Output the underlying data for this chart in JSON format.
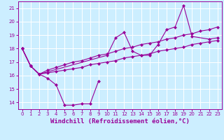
{
  "background_color": "#cceeff",
  "grid_color": "#ffffff",
  "line_color": "#990099",
  "marker_style": "D",
  "marker_size": 2.0,
  "line_width": 0.8,
  "xlim": [
    -0.5,
    23.5
  ],
  "ylim": [
    13.5,
    21.5
  ],
  "yticks": [
    14,
    15,
    16,
    17,
    18,
    19,
    20,
    21
  ],
  "xticks": [
    0,
    1,
    2,
    3,
    4,
    5,
    6,
    7,
    8,
    9,
    10,
    11,
    12,
    13,
    14,
    15,
    16,
    17,
    18,
    19,
    20,
    21,
    22,
    23
  ],
  "xlabel": "Windchill (Refroidissement éolien,°C)",
  "series": [
    {
      "x": [
        0,
        1,
        2,
        3,
        4,
        5,
        6,
        7,
        8,
        9
      ],
      "y": [
        18.0,
        16.7,
        16.1,
        15.8,
        15.3,
        13.8,
        13.8,
        13.9,
        13.9,
        15.6
      ]
    },
    {
      "x": [
        0,
        1,
        2,
        10,
        11,
        12,
        13,
        14,
        15,
        16,
        17,
        18,
        19,
        20,
        22,
        23
      ],
      "y": [
        18.0,
        16.7,
        16.1,
        17.5,
        18.8,
        19.2,
        17.8,
        17.5,
        17.5,
        18.3,
        19.4,
        19.6,
        21.2,
        18.9,
        18.7,
        18.8
      ]
    },
    {
      "x": [
        0,
        1,
        2,
        3,
        4,
        5,
        6,
        7,
        8,
        9,
        10,
        11,
        12,
        13,
        14,
        15,
        16,
        17,
        18,
        19,
        20,
        21,
        22,
        23
      ],
      "y": [
        18.0,
        16.7,
        16.1,
        16.4,
        16.6,
        16.8,
        17.0,
        17.1,
        17.3,
        17.5,
        17.6,
        17.8,
        18.0,
        18.1,
        18.3,
        18.4,
        18.5,
        18.7,
        18.8,
        19.0,
        19.1,
        19.3,
        19.4,
        19.6
      ]
    },
    {
      "x": [
        0,
        1,
        2,
        3,
        4,
        5,
        6,
        7,
        8,
        9,
        10,
        11,
        12,
        13,
        14,
        15,
        16,
        17,
        18,
        19,
        20,
        21,
        22,
        23
      ],
      "y": [
        18.0,
        16.7,
        16.1,
        16.2,
        16.3,
        16.4,
        16.5,
        16.6,
        16.8,
        16.9,
        17.0,
        17.1,
        17.3,
        17.4,
        17.5,
        17.6,
        17.8,
        17.9,
        18.0,
        18.1,
        18.3,
        18.4,
        18.5,
        18.6
      ]
    }
  ],
  "axis_fontsize": 6.5,
  "tick_fontsize": 5.0
}
